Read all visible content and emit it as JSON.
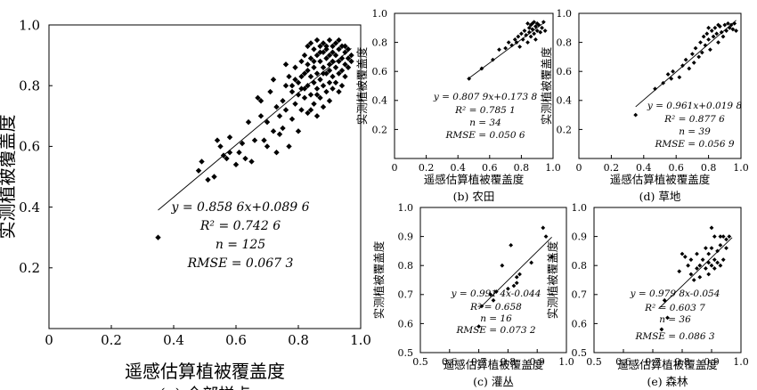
{
  "chart_data": [
    {
      "id": "a",
      "type": "scatter",
      "caption": "(a) 全部样点",
      "xlabel": "遥感估算植被覆盖度",
      "ylabel": "实测植被覆盖度",
      "xlim": [
        0,
        1.0
      ],
      "ylim": [
        0,
        1.0
      ],
      "xticks": [
        "0",
        "0.2",
        "0.4",
        "0.6",
        "0.8",
        "1.0"
      ],
      "yticks": [
        "0.2",
        "0.4",
        "0.6",
        "0.8",
        "1.0"
      ],
      "fit": {
        "slope": 0.8586,
        "intercept": 0.0896,
        "x_range": [
          0.35,
          0.97
        ]
      },
      "annotations": [
        "y = 0.858 6x+0.089 6",
        "R² = 0.742 6",
        "n = 125",
        "RMSE = 0.067 3"
      ],
      "points": [
        [
          0.35,
          0.3
        ],
        [
          0.48,
          0.52
        ],
        [
          0.49,
          0.55
        ],
        [
          0.51,
          0.49
        ],
        [
          0.53,
          0.5
        ],
        [
          0.54,
          0.62
        ],
        [
          0.55,
          0.6
        ],
        [
          0.56,
          0.57
        ],
        [
          0.57,
          0.56
        ],
        [
          0.58,
          0.58
        ],
        [
          0.6,
          0.54
        ],
        [
          0.61,
          0.58
        ],
        [
          0.63,
          0.56
        ],
        [
          0.64,
          0.68
        ],
        [
          0.65,
          0.55
        ],
        [
          0.67,
          0.76
        ],
        [
          0.68,
          0.75
        ],
        [
          0.69,
          0.62
        ],
        [
          0.7,
          0.68
        ],
        [
          0.7,
          0.6
        ],
        [
          0.71,
          0.78
        ],
        [
          0.72,
          0.65
        ],
        [
          0.73,
          0.73
        ],
        [
          0.73,
          0.58
        ],
        [
          0.74,
          0.7
        ],
        [
          0.75,
          0.75
        ],
        [
          0.75,
          0.66
        ],
        [
          0.76,
          0.8
        ],
        [
          0.76,
          0.72
        ],
        [
          0.77,
          0.83
        ],
        [
          0.77,
          0.6
        ],
        [
          0.78,
          0.78
        ],
        [
          0.78,
          0.69
        ],
        [
          0.79,
          0.86
        ],
        [
          0.79,
          0.74
        ],
        [
          0.8,
          0.81
        ],
        [
          0.8,
          0.65
        ],
        [
          0.81,
          0.88
        ],
        [
          0.81,
          0.79
        ],
        [
          0.81,
          0.72
        ],
        [
          0.82,
          0.9
        ],
        [
          0.82,
          0.84
        ],
        [
          0.82,
          0.76
        ],
        [
          0.83,
          0.93
        ],
        [
          0.83,
          0.87
        ],
        [
          0.83,
          0.8
        ],
        [
          0.83,
          0.71
        ],
        [
          0.84,
          0.94
        ],
        [
          0.84,
          0.89
        ],
        [
          0.84,
          0.83
        ],
        [
          0.84,
          0.77
        ],
        [
          0.85,
          0.92
        ],
        [
          0.85,
          0.86
        ],
        [
          0.85,
          0.81
        ],
        [
          0.85,
          0.74
        ],
        [
          0.86,
          0.95
        ],
        [
          0.86,
          0.9
        ],
        [
          0.86,
          0.84
        ],
        [
          0.86,
          0.79
        ],
        [
          0.86,
          0.7
        ],
        [
          0.87,
          0.93
        ],
        [
          0.87,
          0.88
        ],
        [
          0.87,
          0.82
        ],
        [
          0.87,
          0.76
        ],
        [
          0.88,
          0.94
        ],
        [
          0.88,
          0.91
        ],
        [
          0.88,
          0.86
        ],
        [
          0.88,
          0.8
        ],
        [
          0.88,
          0.73
        ],
        [
          0.89,
          0.92
        ],
        [
          0.89,
          0.89
        ],
        [
          0.89,
          0.84
        ],
        [
          0.89,
          0.78
        ],
        [
          0.9,
          0.95
        ],
        [
          0.9,
          0.9
        ],
        [
          0.9,
          0.85
        ],
        [
          0.9,
          0.81
        ],
        [
          0.9,
          0.75
        ],
        [
          0.91,
          0.93
        ],
        [
          0.91,
          0.88
        ],
        [
          0.91,
          0.83
        ],
        [
          0.91,
          0.79
        ],
        [
          0.92,
          0.94
        ],
        [
          0.92,
          0.9
        ],
        [
          0.92,
          0.86
        ],
        [
          0.92,
          0.81
        ],
        [
          0.93,
          0.92
        ],
        [
          0.93,
          0.88
        ],
        [
          0.93,
          0.84
        ],
        [
          0.93,
          0.78
        ],
        [
          0.94,
          0.93
        ],
        [
          0.94,
          0.89
        ],
        [
          0.94,
          0.85
        ],
        [
          0.94,
          0.8
        ],
        [
          0.95,
          0.91
        ],
        [
          0.95,
          0.87
        ],
        [
          0.95,
          0.83
        ],
        [
          0.96,
          0.89
        ],
        [
          0.96,
          0.86
        ],
        [
          0.97,
          0.88
        ],
        [
          0.72,
          0.82
        ],
        [
          0.68,
          0.7
        ],
        [
          0.66,
          0.62
        ],
        [
          0.62,
          0.61
        ],
        [
          0.58,
          0.63
        ],
        [
          0.74,
          0.64
        ],
        [
          0.76,
          0.87
        ],
        [
          0.79,
          0.82
        ],
        [
          0.8,
          0.77
        ],
        [
          0.84,
          0.72
        ],
        [
          0.86,
          0.77
        ],
        [
          0.88,
          0.84
        ],
        [
          0.91,
          0.91
        ],
        [
          0.93,
          0.95
        ],
        [
          0.95,
          0.93
        ],
        [
          0.96,
          0.92
        ],
        [
          0.97,
          0.9
        ],
        [
          0.78,
          0.8
        ],
        [
          0.81,
          0.83
        ],
        [
          0.83,
          0.85
        ],
        [
          0.85,
          0.88
        ],
        [
          0.87,
          0.91
        ],
        [
          0.89,
          0.93
        ],
        [
          0.9,
          0.87
        ],
        [
          0.82,
          0.79
        ]
      ]
    },
    {
      "id": "b",
      "type": "scatter",
      "caption": "(b) 农田",
      "xlabel": "遥感估算植被覆盖度",
      "ylabel": "实测植被覆盖度",
      "xlim": [
        0,
        1.0
      ],
      "ylim": [
        0,
        1.0
      ],
      "xticks": [
        "0",
        "0.2",
        "0.4",
        "0.6",
        "0.8",
        "1.0"
      ],
      "yticks": [
        "0.2",
        "0.4",
        "0.6",
        "0.8",
        "1.0"
      ],
      "fit": {
        "slope": 0.8079,
        "intercept": 0.1738,
        "x_range": [
          0.47,
          0.95
        ]
      },
      "annotations": [
        "y = 0.807 9x+0.173 8",
        "R² = 0.785 1",
        "n = 34",
        "RMSE = 0.050 6"
      ],
      "points": [
        [
          0.47,
          0.55
        ],
        [
          0.55,
          0.62
        ],
        [
          0.62,
          0.68
        ],
        [
          0.66,
          0.75
        ],
        [
          0.7,
          0.76
        ],
        [
          0.72,
          0.8
        ],
        [
          0.74,
          0.78
        ],
        [
          0.76,
          0.82
        ],
        [
          0.77,
          0.8
        ],
        [
          0.78,
          0.84
        ],
        [
          0.79,
          0.77
        ],
        [
          0.8,
          0.86
        ],
        [
          0.81,
          0.82
        ],
        [
          0.82,
          0.88
        ],
        [
          0.83,
          0.85
        ],
        [
          0.84,
          0.8
        ],
        [
          0.85,
          0.9
        ],
        [
          0.85,
          0.87
        ],
        [
          0.86,
          0.92
        ],
        [
          0.86,
          0.84
        ],
        [
          0.87,
          0.93
        ],
        [
          0.87,
          0.89
        ],
        [
          0.88,
          0.94
        ],
        [
          0.88,
          0.86
        ],
        [
          0.89,
          0.91
        ],
        [
          0.89,
          0.82
        ],
        [
          0.9,
          0.93
        ],
        [
          0.9,
          0.88
        ],
        [
          0.91,
          0.92
        ],
        [
          0.92,
          0.87
        ],
        [
          0.93,
          0.9
        ],
        [
          0.94,
          0.94
        ],
        [
          0.95,
          0.88
        ],
        [
          0.84,
          0.93
        ]
      ]
    },
    {
      "id": "d",
      "type": "scatter",
      "caption": "(d) 草地",
      "xlabel": "遥感估算植被覆盖度",
      "ylabel": "实测植被覆盖度",
      "xlim": [
        0,
        1.0
      ],
      "ylim": [
        0,
        1.0
      ],
      "xticks": [
        "0",
        "0.2",
        "0.4",
        "0.6",
        "0.8",
        "1.0"
      ],
      "yticks": [
        "0.2",
        "0.4",
        "0.6",
        "0.8",
        "1.0"
      ],
      "fit": {
        "slope": 0.961,
        "intercept": 0.0198,
        "x_range": [
          0.35,
          0.97
        ]
      },
      "annotations": [
        "y = 0.961x+0.019 8",
        "R² = 0.877 6",
        "n = 39",
        "RMSE = 0.056 9"
      ],
      "points": [
        [
          0.35,
          0.3
        ],
        [
          0.47,
          0.48
        ],
        [
          0.52,
          0.52
        ],
        [
          0.55,
          0.58
        ],
        [
          0.57,
          0.55
        ],
        [
          0.58,
          0.6
        ],
        [
          0.62,
          0.56
        ],
        [
          0.64,
          0.64
        ],
        [
          0.66,
          0.68
        ],
        [
          0.68,
          0.62
        ],
        [
          0.7,
          0.72
        ],
        [
          0.71,
          0.66
        ],
        [
          0.72,
          0.76
        ],
        [
          0.74,
          0.7
        ],
        [
          0.75,
          0.8
        ],
        [
          0.76,
          0.73
        ],
        [
          0.77,
          0.84
        ],
        [
          0.78,
          0.78
        ],
        [
          0.79,
          0.86
        ],
        [
          0.8,
          0.82
        ],
        [
          0.81,
          0.75
        ],
        [
          0.82,
          0.88
        ],
        [
          0.83,
          0.84
        ],
        [
          0.84,
          0.9
        ],
        [
          0.85,
          0.86
        ],
        [
          0.86,
          0.8
        ],
        [
          0.87,
          0.91
        ],
        [
          0.88,
          0.87
        ],
        [
          0.89,
          0.84
        ],
        [
          0.9,
          0.92
        ],
        [
          0.91,
          0.88
        ],
        [
          0.92,
          0.93
        ],
        [
          0.93,
          0.9
        ],
        [
          0.94,
          0.92
        ],
        [
          0.95,
          0.89
        ],
        [
          0.96,
          0.93
        ],
        [
          0.97,
          0.88
        ],
        [
          0.8,
          0.9
        ],
        [
          0.86,
          0.92
        ]
      ]
    },
    {
      "id": "c",
      "type": "scatter",
      "caption": "(c) 灌丛",
      "xlabel": "遥感估算植被覆盖度",
      "ylabel": "实测植被覆盖度",
      "xlim": [
        0.5,
        1.0
      ],
      "ylim": [
        0.5,
        1.0
      ],
      "xticks": [
        "0.5",
        "0.6",
        "0.7",
        "0.8",
        "0.9",
        "1.0"
      ],
      "yticks": [
        "0.5",
        "0.6",
        "0.7",
        "0.8",
        "0.9",
        "1.0"
      ],
      "fit": {
        "slope": 0.9914,
        "intercept": -0.044,
        "x_range": [
          0.7,
          0.95
        ]
      },
      "annotations": [
        "y = 0.991 4x-0.044",
        "R² = 0.658",
        "n = 16",
        "RMSE = 0.073 2"
      ],
      "points": [
        [
          0.7,
          0.59
        ],
        [
          0.71,
          0.66
        ],
        [
          0.74,
          0.7
        ],
        [
          0.75,
          0.68
        ],
        [
          0.76,
          0.71
        ],
        [
          0.78,
          0.8
        ],
        [
          0.8,
          0.72
        ],
        [
          0.81,
          0.87
        ],
        [
          0.82,
          0.73
        ],
        [
          0.83,
          0.74
        ],
        [
          0.83,
          0.76
        ],
        [
          0.84,
          0.77
        ],
        [
          0.88,
          0.81
        ],
        [
          0.92,
          0.93
        ],
        [
          0.93,
          0.9
        ],
        [
          0.95,
          0.83
        ]
      ]
    },
    {
      "id": "e",
      "type": "scatter",
      "caption": "(e) 森林",
      "xlabel": "遥感估算植被覆盖度",
      "ylabel": "实测植被覆盖度",
      "xlim": [
        0.5,
        1.0
      ],
      "ylim": [
        0.5,
        1.0
      ],
      "xticks": [
        "0.5",
        "0.6",
        "0.7",
        "0.8",
        "0.9",
        "1.0"
      ],
      "yticks": [
        "0.5",
        "0.6",
        "0.7",
        "0.8",
        "0.9",
        "1.0"
      ],
      "fit": {
        "slope": 0.9798,
        "intercept": -0.054,
        "x_range": [
          0.72,
          0.97
        ]
      },
      "annotations": [
        "y = 0.979 8x-0.054",
        "R² = 0.603 7",
        "n = 36",
        "RMSE = 0.086 3"
      ],
      "points": [
        [
          0.73,
          0.58
        ],
        [
          0.74,
          0.68
        ],
        [
          0.75,
          0.62
        ],
        [
          0.79,
          0.78
        ],
        [
          0.8,
          0.84
        ],
        [
          0.81,
          0.83
        ],
        [
          0.82,
          0.8
        ],
        [
          0.83,
          0.77
        ],
        [
          0.83,
          0.82
        ],
        [
          0.84,
          0.75
        ],
        [
          0.85,
          0.79
        ],
        [
          0.85,
          0.84
        ],
        [
          0.86,
          0.8
        ],
        [
          0.86,
          0.76
        ],
        [
          0.87,
          0.82
        ],
        [
          0.88,
          0.86
        ],
        [
          0.88,
          0.79
        ],
        [
          0.89,
          0.81
        ],
        [
          0.89,
          0.84
        ],
        [
          0.9,
          0.8
        ],
        [
          0.9,
          0.93
        ],
        [
          0.9,
          0.86
        ],
        [
          0.91,
          0.82
        ],
        [
          0.91,
          0.9
        ],
        [
          0.91,
          0.79
        ],
        [
          0.92,
          0.85
        ],
        [
          0.92,
          0.81
        ],
        [
          0.93,
          0.9
        ],
        [
          0.93,
          0.87
        ],
        [
          0.94,
          0.82
        ],
        [
          0.94,
          0.9
        ],
        [
          0.95,
          0.86
        ],
        [
          0.95,
          0.89
        ],
        [
          0.96,
          0.9
        ],
        [
          0.93,
          0.8
        ],
        [
          0.89,
          0.77
        ]
      ]
    }
  ]
}
